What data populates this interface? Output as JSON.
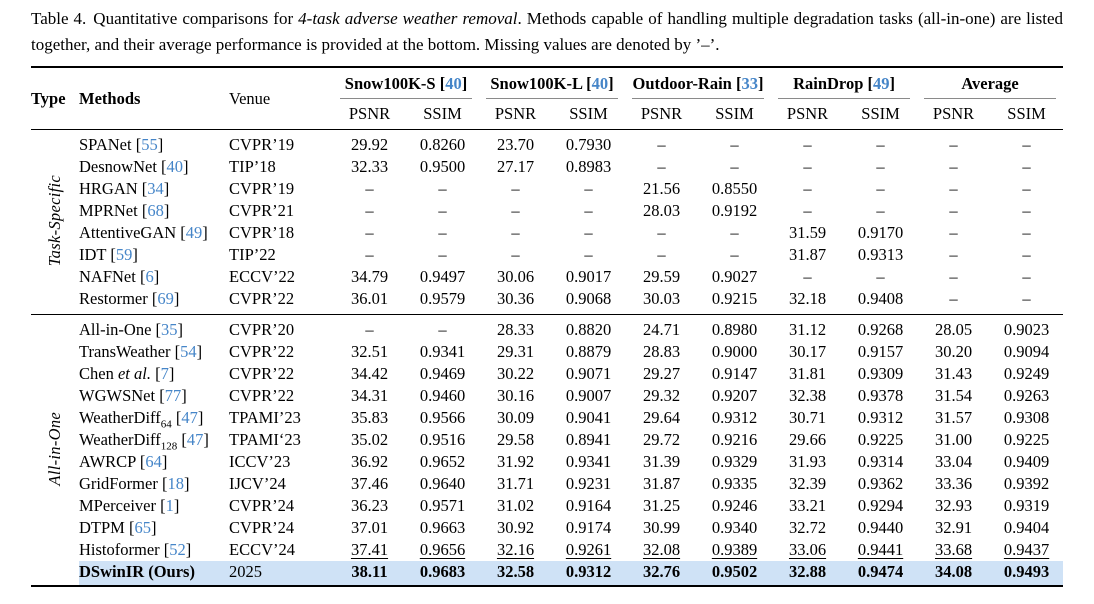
{
  "caption": {
    "prefix": "Table 4.",
    "body_before": "Quantitative comparisons for ",
    "italic": "4-task adverse weather removal",
    "body_after": ". Methods capable of handling multiple degradation tasks (all-in-one) are listed together, and their average performance is provided at the bottom. Missing values are denoted by ’–’."
  },
  "colors": {
    "cite_blue": "#4585c8",
    "highlight_row": "#cfe2f6"
  },
  "table": {
    "columns": {
      "type": "Type",
      "methods": "Methods",
      "venue": "Venue",
      "psnr": "PSNR",
      "ssim": "SSIM"
    },
    "cite_format": {
      "open": " [",
      "close": "]"
    },
    "groups": [
      {
        "label": "Snow100K-S",
        "cite": "40"
      },
      {
        "label": "Snow100K-L",
        "cite": "40"
      },
      {
        "label": "Outdoor-Rain",
        "cite": "33"
      },
      {
        "label": "RainDrop",
        "cite": "49"
      },
      {
        "label": "Average",
        "cite": null
      }
    ],
    "type_groups": [
      {
        "label": "Task-Specific",
        "rows": 8
      },
      {
        "label": "All-in-One",
        "rows": 12
      }
    ],
    "rows": [
      {
        "method": {
          "label": "SPANet",
          "cite": "55"
        },
        "venue": "CVPR’19",
        "style": "normal",
        "values": [
          "29.92",
          "0.8260",
          "23.70",
          "0.7930",
          "–",
          "–",
          "–",
          "–",
          "–",
          "–"
        ]
      },
      {
        "method": {
          "label": "DesnowNet",
          "cite": "40"
        },
        "venue": "TIP’18",
        "style": "normal",
        "values": [
          "32.33",
          "0.9500",
          "27.17",
          "0.8983",
          "–",
          "–",
          "–",
          "–",
          "–",
          "–"
        ]
      },
      {
        "method": {
          "label": "HRGAN",
          "cite": "34"
        },
        "venue": "CVPR’19",
        "style": "normal",
        "values": [
          "–",
          "–",
          "–",
          "–",
          "21.56",
          "0.8550",
          "–",
          "–",
          "–",
          "–"
        ]
      },
      {
        "method": {
          "label": "MPRNet",
          "cite": "68"
        },
        "venue": "CVPR’21",
        "style": "normal",
        "values": [
          "–",
          "–",
          "–",
          "–",
          "28.03",
          "0.9192",
          "–",
          "–",
          "–",
          "–"
        ]
      },
      {
        "method": {
          "label": "AttentiveGAN",
          "cite": "49"
        },
        "venue": "CVPR’18",
        "style": "normal",
        "values": [
          "–",
          "–",
          "–",
          "–",
          "–",
          "–",
          "31.59",
          "0.9170",
          "–",
          "–"
        ]
      },
      {
        "method": {
          "label": "IDT",
          "cite": "59"
        },
        "venue": "TIP’22",
        "style": "normal",
        "values": [
          "–",
          "–",
          "–",
          "–",
          "–",
          "–",
          "31.87",
          "0.9313",
          "–",
          "–"
        ]
      },
      {
        "method": {
          "label": "NAFNet",
          "cite": "6"
        },
        "venue": "ECCV’22",
        "style": "normal",
        "values": [
          "34.79",
          "0.9497",
          "30.06",
          "0.9017",
          "29.59",
          "0.9027",
          "–",
          "–",
          "–",
          "–"
        ]
      },
      {
        "method": {
          "label": "Restormer",
          "cite": "69"
        },
        "venue": "CVPR’22",
        "style": "normal",
        "values": [
          "36.01",
          "0.9579",
          "30.36",
          "0.9068",
          "30.03",
          "0.9215",
          "32.18",
          "0.9408",
          "–",
          "–"
        ]
      },
      {
        "method": {
          "label": "All-in-One",
          "cite": "35"
        },
        "venue": "CVPR’20",
        "style": "normal",
        "values": [
          "–",
          "–",
          "28.33",
          "0.8820",
          "24.71",
          "0.8980",
          "31.12",
          "0.9268",
          "28.05",
          "0.9023"
        ]
      },
      {
        "method": {
          "label": "TransWeather",
          "cite": "54"
        },
        "venue": "CVPR’22",
        "style": "normal",
        "values": [
          "32.51",
          "0.9341",
          "29.31",
          "0.8879",
          "28.83",
          "0.9000",
          "30.17",
          "0.9157",
          "30.20",
          "0.9094"
        ]
      },
      {
        "method": {
          "label": "Chen",
          "italic": "et al.",
          "cite": "7"
        },
        "venue": "CVPR’22",
        "style": "normal",
        "values": [
          "34.42",
          "0.9469",
          "30.22",
          "0.9071",
          "29.27",
          "0.9147",
          "31.81",
          "0.9309",
          "31.43",
          "0.9249"
        ]
      },
      {
        "method": {
          "label": "WGWSNet",
          "cite": "77"
        },
        "venue": "CVPR’22",
        "style": "normal",
        "values": [
          "34.31",
          "0.9460",
          "30.16",
          "0.9007",
          "29.32",
          "0.9207",
          "32.38",
          "0.9378",
          "31.54",
          "0.9263"
        ]
      },
      {
        "method": {
          "label": "WeatherDiff",
          "sub": "64",
          "cite": "47"
        },
        "venue": "TPAMI’23",
        "style": "normal",
        "values": [
          "35.83",
          "0.9566",
          "30.09",
          "0.9041",
          "29.64",
          "0.9312",
          "30.71",
          "0.9312",
          "31.57",
          "0.9308"
        ]
      },
      {
        "method": {
          "label": "WeatherDiff",
          "sub": "128",
          "cite": "47"
        },
        "venue": "TPAMI‘23",
        "style": "normal",
        "values": [
          "35.02",
          "0.9516",
          "29.58",
          "0.8941",
          "29.72",
          "0.9216",
          "29.66",
          "0.9225",
          "31.00",
          "0.9225"
        ]
      },
      {
        "method": {
          "label": "AWRCP",
          "cite": "64"
        },
        "venue": "ICCV’23",
        "style": "normal",
        "values": [
          "36.92",
          "0.9652",
          "31.92",
          "0.9341",
          "31.39",
          "0.9329",
          "31.93",
          "0.9314",
          "33.04",
          "0.9409"
        ]
      },
      {
        "method": {
          "label": "GridFormer",
          "cite": "18"
        },
        "venue": "IJCV’24",
        "style": "normal",
        "values": [
          "37.46",
          "0.9640",
          "31.71",
          "0.9231",
          "31.87",
          "0.9335",
          "32.39",
          "0.9362",
          "33.36",
          "0.9392"
        ]
      },
      {
        "method": {
          "label": "MPerceiver",
          "cite": "1"
        },
        "venue": "CVPR’24",
        "style": "normal",
        "values": [
          "36.23",
          "0.9571",
          "31.02",
          "0.9164",
          "31.25",
          "0.9246",
          "33.21",
          "0.9294",
          "32.93",
          "0.9319"
        ]
      },
      {
        "method": {
          "label": "DTPM",
          "cite": "65"
        },
        "venue": "CVPR’24",
        "style": "normal",
        "values": [
          "37.01",
          "0.9663",
          "30.92",
          "0.9174",
          "30.99",
          "0.9340",
          "32.72",
          "0.9440",
          "32.91",
          "0.9404"
        ]
      },
      {
        "method": {
          "label": "Histoformer",
          "cite": "52"
        },
        "venue": "ECCV’24",
        "style": "underline",
        "values": [
          "37.41",
          "0.9656",
          "32.16",
          "0.9261",
          "32.08",
          "0.9389",
          "33.06",
          "0.9441",
          "33.68",
          "0.9437"
        ]
      },
      {
        "method": {
          "label": "DSwinIR (Ours)",
          "cite": null
        },
        "venue": "2025",
        "style": "ours",
        "values": [
          "38.11",
          "0.9683",
          "32.58",
          "0.9312",
          "32.76",
          "0.9502",
          "32.88",
          "0.9474",
          "34.08",
          "0.9493"
        ]
      }
    ]
  }
}
